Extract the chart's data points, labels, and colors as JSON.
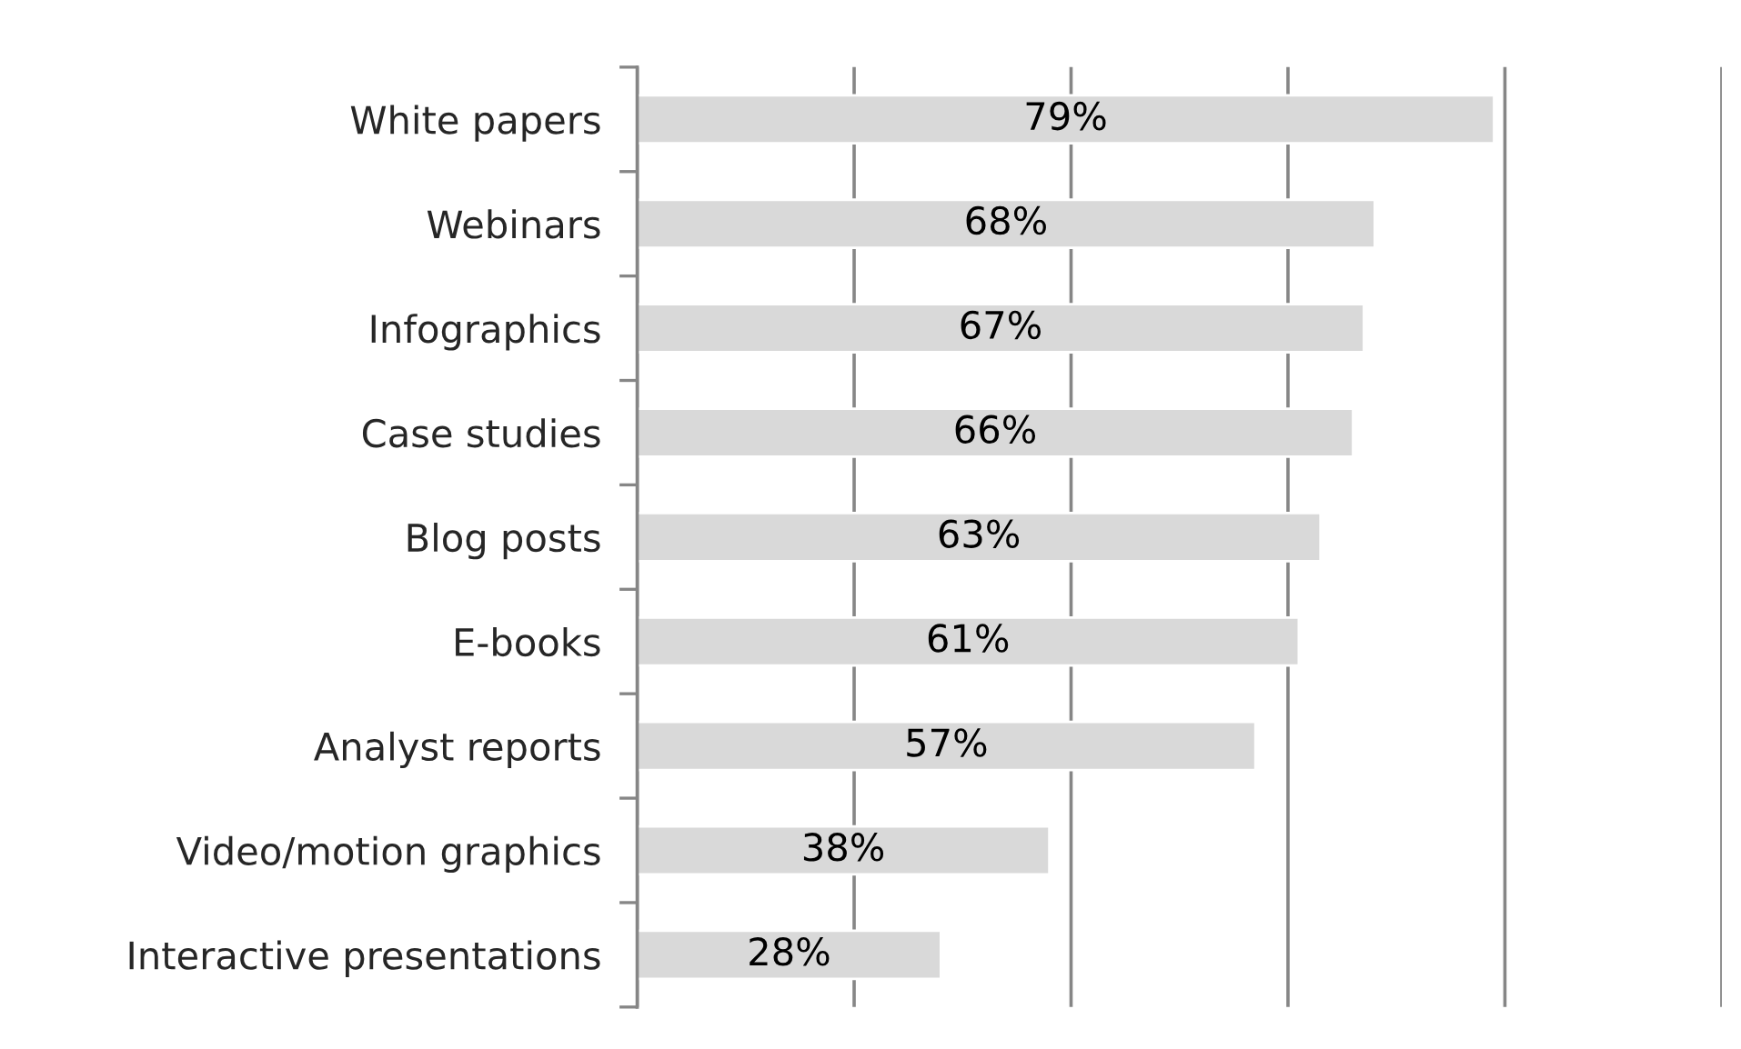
{
  "chart_data": {
    "type": "bar",
    "orientation": "horizontal",
    "categories": [
      "White papers",
      "Webinars",
      "Infographics",
      "Case studies",
      "Blog posts",
      "E-books",
      "Analyst reports",
      "Video/motion graphics",
      "Interactive presentations"
    ],
    "values": [
      79,
      68,
      67,
      66,
      63,
      61,
      57,
      38,
      28
    ],
    "value_labels": [
      "79%",
      "68%",
      "67%",
      "66%",
      "63%",
      "61%",
      "57%",
      "38%",
      "28%"
    ],
    "color": "#d9d9d9",
    "xlim": [
      0,
      100
    ],
    "xticks": [
      {
        "value": 0,
        "label": null
      },
      {
        "value": 20,
        "label": null
      },
      {
        "value": 40,
        "label": null
      },
      {
        "value": 60,
        "label": null
      },
      {
        "value": 80,
        "label": null
      },
      {
        "value": 100,
        "label": null
      }
    ],
    "tick_labels": "y",
    "grid": "x",
    "legend": false
  }
}
